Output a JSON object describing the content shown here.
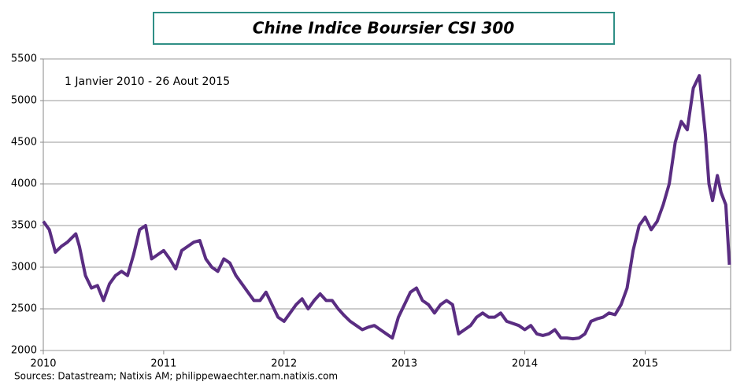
{
  "chart_data": {
    "type": "line",
    "title": "Chine Indice Boursier CSI 300",
    "annotation": "1 Janvier 2010 - 26 Aout 2015",
    "source": "Sources: Datastream; Natixis AM; philippewaechter.nam.natixis.com",
    "x": [
      2010.0,
      2010.05,
      2010.1,
      2010.15,
      2010.2,
      2010.27,
      2010.3,
      2010.35,
      2010.4,
      2010.45,
      2010.5,
      2010.55,
      2010.6,
      2010.65,
      2010.7,
      2010.75,
      2010.8,
      2010.85,
      2010.9,
      2010.95,
      2011.0,
      2011.05,
      2011.1,
      2011.15,
      2011.2,
      2011.25,
      2011.3,
      2011.35,
      2011.4,
      2011.45,
      2011.5,
      2011.55,
      2011.6,
      2011.65,
      2011.7,
      2011.75,
      2011.8,
      2011.85,
      2011.9,
      2011.95,
      2012.0,
      2012.05,
      2012.1,
      2012.15,
      2012.2,
      2012.25,
      2012.3,
      2012.35,
      2012.4,
      2012.45,
      2012.5,
      2012.55,
      2012.6,
      2012.65,
      2012.7,
      2012.75,
      2012.8,
      2012.85,
      2012.9,
      2012.95,
      2013.0,
      2013.05,
      2013.1,
      2013.15,
      2013.2,
      2013.25,
      2013.3,
      2013.35,
      2013.4,
      2013.45,
      2013.5,
      2013.55,
      2013.6,
      2013.65,
      2013.7,
      2013.75,
      2013.8,
      2013.85,
      2013.95,
      2014.0,
      2014.05,
      2014.1,
      2014.15,
      2014.2,
      2014.25,
      2014.3,
      2014.35,
      2014.4,
      2014.45,
      2014.5,
      2014.55,
      2014.6,
      2014.65,
      2014.7,
      2014.75,
      2014.8,
      2014.85,
      2014.9,
      2014.95,
      2015.0,
      2015.05,
      2015.1,
      2015.15,
      2015.2,
      2015.25,
      2015.3,
      2015.35,
      2015.4,
      2015.45,
      2015.5,
      2015.53,
      2015.56,
      2015.6,
      2015.63,
      2015.67,
      2015.7
    ],
    "series": [
      {
        "name": "CSI 300",
        "color": "#5a2d82",
        "values": [
          3550,
          3450,
          3180,
          3250,
          3300,
          3400,
          3250,
          2900,
          2750,
          2780,
          2600,
          2800,
          2900,
          2950,
          2900,
          3150,
          3450,
          3500,
          3100,
          3150,
          3200,
          3100,
          2980,
          3200,
          3250,
          3300,
          3320,
          3100,
          3000,
          2950,
          3100,
          3050,
          2900,
          2800,
          2700,
          2600,
          2600,
          2700,
          2550,
          2400,
          2350,
          2450,
          2550,
          2620,
          2500,
          2600,
          2680,
          2600,
          2600,
          2500,
          2420,
          2350,
          2300,
          2250,
          2280,
          2300,
          2250,
          2200,
          2150,
          2400,
          2550,
          2700,
          2750,
          2600,
          2550,
          2450,
          2550,
          2600,
          2550,
          2200,
          2250,
          2300,
          2400,
          2450,
          2400,
          2400,
          2450,
          2350,
          2300,
          2250,
          2300,
          2200,
          2180,
          2200,
          2250,
          2150,
          2150,
          2140,
          2150,
          2200,
          2350,
          2380,
          2400,
          2450,
          2430,
          2550,
          2750,
          3200,
          3500,
          3600,
          3450,
          3550,
          3750,
          4000,
          4500,
          4750,
          4650,
          5150,
          5300,
          4600,
          4000,
          3800,
          4100,
          3900,
          3750,
          3030
        ]
      }
    ],
    "xlim": [
      2010,
      2015.71
    ],
    "xticks": [
      2010,
      2011,
      2012,
      2013,
      2014,
      2015
    ],
    "ylim": [
      2000,
      5500
    ],
    "yticks": [
      2000,
      2500,
      3000,
      3500,
      4000,
      4500,
      5000,
      5500
    ],
    "grid": true
  }
}
